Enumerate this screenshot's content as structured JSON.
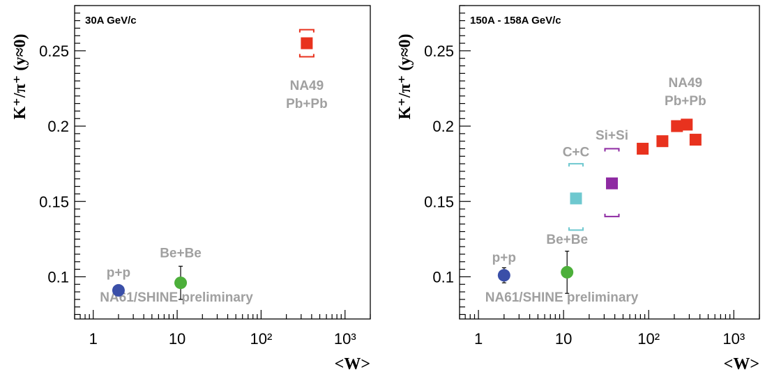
{
  "chart_data": [
    {
      "type": "scatter",
      "panel_label": "30A GeV/c",
      "xlabel": "<W>",
      "ylabel": "K⁺/π⁺ (y≈0)",
      "xscale": "log",
      "xlim": [
        0.6,
        2000
      ],
      "ylim": [
        0.072,
        0.28
      ],
      "x_tick_labels": [
        "1",
        "10",
        "10²",
        "10³"
      ],
      "y_tick_labels": [
        "0.1",
        "0.15",
        "0.2",
        "0.25"
      ],
      "grid": false,
      "colors": {
        "p+p": "#3a4fa8",
        "Be+Be": "#4caf3a",
        "NA49": "#e8321e"
      },
      "points": [
        {
          "system": "p+p",
          "x": 2,
          "y": 0.091,
          "err": 0.002,
          "marker": "circle",
          "color": "#3a4fa8"
        },
        {
          "system": "Be+Be",
          "x": 11,
          "y": 0.096,
          "err": 0.011,
          "marker": "circle",
          "color": "#4caf3a"
        },
        {
          "system": "NA49",
          "x": 350,
          "y": 0.255,
          "err": 0,
          "syst_bracket": [
            0.246,
            0.264
          ],
          "marker": "square",
          "color": "#e8321e"
        }
      ],
      "annotations": [
        {
          "text": "p+p",
          "x": 2,
          "y": 0.1
        },
        {
          "text": "Be+Be",
          "x": 11,
          "y": 0.113
        },
        {
          "text": "NA49",
          "x": 350,
          "y": 0.224
        },
        {
          "text": "Pb+Pb",
          "x": 350,
          "y": 0.212
        },
        {
          "text": "NA61/SHINE preliminary",
          "x": 1.2,
          "y": 0.0835
        }
      ]
    },
    {
      "type": "scatter",
      "panel_label": "150A - 158A GeV/c",
      "xlabel": "<W>",
      "ylabel": "K⁺/π⁺ (y≈0)",
      "xscale": "log",
      "xlim": [
        0.6,
        2000
      ],
      "ylim": [
        0.072,
        0.28
      ],
      "x_tick_labels": [
        "1",
        "10",
        "10²",
        "10³"
      ],
      "y_tick_labels": [
        "0.1",
        "0.15",
        "0.2",
        "0.25"
      ],
      "grid": false,
      "colors": {
        "p+p": "#3a4fa8",
        "Be+Be": "#4caf3a",
        "C+C": "#6ec8cf",
        "Si+Si": "#8e2aa2",
        "NA49": "#e8321e"
      },
      "points": [
        {
          "system": "p+p",
          "x": 2,
          "y": 0.101,
          "err": 0.005,
          "marker": "circle",
          "color": "#3a4fa8"
        },
        {
          "system": "Be+Be",
          "x": 11,
          "y": 0.103,
          "err": 0.014,
          "marker": "circle",
          "color": "#4caf3a"
        },
        {
          "system": "C+C",
          "x": 14,
          "y": 0.152,
          "err": 0,
          "syst_bracket": [
            0.131,
            0.175
          ],
          "marker": "square",
          "color": "#6ec8cf"
        },
        {
          "system": "Si+Si",
          "x": 37,
          "y": 0.162,
          "err": 0,
          "syst_bracket": [
            0.14,
            0.185
          ],
          "marker": "square",
          "color": "#8e2aa2"
        },
        {
          "system": "NA49",
          "x": 85,
          "y": 0.185,
          "err": 0,
          "marker": "square",
          "color": "#e8321e"
        },
        {
          "system": "NA49",
          "x": 145,
          "y": 0.19,
          "err": 0,
          "marker": "square",
          "color": "#e8321e"
        },
        {
          "system": "NA49",
          "x": 215,
          "y": 0.2,
          "err": 0,
          "marker": "square",
          "color": "#e8321e"
        },
        {
          "system": "NA49",
          "x": 280,
          "y": 0.201,
          "err": 0,
          "marker": "square",
          "color": "#e8321e"
        },
        {
          "system": "NA49",
          "x": 355,
          "y": 0.191,
          "err": 0,
          "marker": "square",
          "color": "#e8321e"
        }
      ],
      "annotations": [
        {
          "text": "p+p",
          "x": 2,
          "y": 0.11
        },
        {
          "text": "Be+Be",
          "x": 11,
          "y": 0.122
        },
        {
          "text": "C+C",
          "x": 14,
          "y": 0.18
        },
        {
          "text": "Si+Si",
          "x": 37,
          "y": 0.191
        },
        {
          "text": "NA49",
          "x": 270,
          "y": 0.226
        },
        {
          "text": "Pb+Pb",
          "x": 270,
          "y": 0.214
        },
        {
          "text": "NA61/SHINE preliminary",
          "x": 1.2,
          "y": 0.0835
        }
      ]
    }
  ]
}
